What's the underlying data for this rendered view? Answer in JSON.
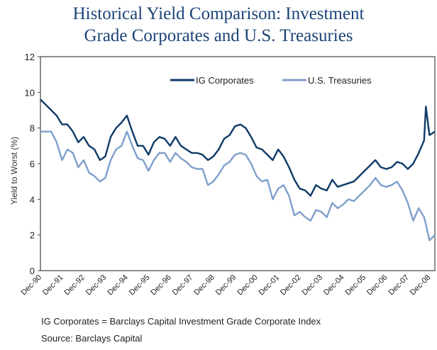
{
  "chart_data": {
    "type": "line",
    "title_lines": [
      "Historical Yield Comparison: Investment",
      "Grade Corporates and U.S. Treasuries"
    ],
    "ylabel": "Yield to Worst (%)",
    "xlabel": "",
    "ylim": [
      0,
      12
    ],
    "yticks": [
      0,
      2,
      4,
      6,
      8,
      10,
      12
    ],
    "xlim": [
      "1990-12",
      "2009-03"
    ],
    "xticks": [
      "Dec-90",
      "Dec-91",
      "Dec-92",
      "Dec-93",
      "Dec-94",
      "Dec-95",
      "Dec-96",
      "Dec-97",
      "Dec-98",
      "Dec-99",
      "Dec-00",
      "Dec-01",
      "Dec-02",
      "Dec-03",
      "Dec-04",
      "Dec-05",
      "Dec-06",
      "Dec-07",
      "Dec-08"
    ],
    "grid": false,
    "legend_position": "top-right",
    "x": [
      "1990-12",
      "1991-03",
      "1991-06",
      "1991-09",
      "1991-12",
      "1992-03",
      "1992-06",
      "1992-09",
      "1992-12",
      "1993-03",
      "1993-06",
      "1993-09",
      "1993-12",
      "1994-03",
      "1994-06",
      "1994-09",
      "1994-12",
      "1995-03",
      "1995-06",
      "1995-09",
      "1995-12",
      "1996-03",
      "1996-06",
      "1996-09",
      "1996-12",
      "1997-03",
      "1997-06",
      "1997-09",
      "1997-12",
      "1998-03",
      "1998-06",
      "1998-09",
      "1998-12",
      "1999-03",
      "1999-06",
      "1999-09",
      "1999-12",
      "2000-03",
      "2000-06",
      "2000-09",
      "2000-12",
      "2001-03",
      "2001-06",
      "2001-09",
      "2001-12",
      "2002-03",
      "2002-06",
      "2002-09",
      "2002-12",
      "2003-03",
      "2003-06",
      "2003-09",
      "2003-12",
      "2004-03",
      "2004-06",
      "2004-09",
      "2004-12",
      "2005-03",
      "2005-06",
      "2005-09",
      "2005-12",
      "2006-03",
      "2006-06",
      "2006-09",
      "2006-12",
      "2007-03",
      "2007-06",
      "2007-09",
      "2007-12",
      "2008-03",
      "2008-06",
      "2008-09",
      "2008-10",
      "2008-12",
      "2009-03"
    ],
    "series": [
      {
        "name": "IG Corporates",
        "color": "#0e3a68",
        "values": [
          9.6,
          9.3,
          9.0,
          8.7,
          8.2,
          8.2,
          7.8,
          7.2,
          7.5,
          7.0,
          6.8,
          6.2,
          6.4,
          7.5,
          8.0,
          8.3,
          8.7,
          7.8,
          7.0,
          7.0,
          6.5,
          7.2,
          7.5,
          7.4,
          7.0,
          7.5,
          7.0,
          6.8,
          6.6,
          6.6,
          6.5,
          6.2,
          6.4,
          6.8,
          7.4,
          7.6,
          8.1,
          8.2,
          8.0,
          7.5,
          6.9,
          6.8,
          6.5,
          6.2,
          6.8,
          6.4,
          5.8,
          5.1,
          4.6,
          4.5,
          4.2,
          4.8,
          4.6,
          4.5,
          5.1,
          4.7,
          4.8,
          4.9,
          5.0,
          5.3,
          5.6,
          5.9,
          6.2,
          5.8,
          5.7,
          5.8,
          6.1,
          6.0,
          5.7,
          6.0,
          6.6,
          7.3,
          9.2,
          7.6,
          7.8
        ]
      },
      {
        "name": "U.S. Treasuries",
        "color": "#7f9fcc",
        "values": [
          7.8,
          7.8,
          7.8,
          7.2,
          6.2,
          6.8,
          6.6,
          5.8,
          6.2,
          5.5,
          5.3,
          5.0,
          5.2,
          6.2,
          6.8,
          7.0,
          7.8,
          7.0,
          6.3,
          6.2,
          5.6,
          6.2,
          6.6,
          6.6,
          6.1,
          6.6,
          6.3,
          6.1,
          5.8,
          5.7,
          5.7,
          4.8,
          5.0,
          5.4,
          5.9,
          6.1,
          6.5,
          6.6,
          6.5,
          6.0,
          5.3,
          5.0,
          5.1,
          4.0,
          4.6,
          4.8,
          4.2,
          3.1,
          3.3,
          3.0,
          2.8,
          3.4,
          3.3,
          3.0,
          3.8,
          3.5,
          3.7,
          4.0,
          3.9,
          4.2,
          4.5,
          4.8,
          5.2,
          4.8,
          4.7,
          4.8,
          5.0,
          4.5,
          3.8,
          2.8,
          3.5,
          3.0,
          2.6,
          1.7,
          2.0
        ]
      }
    ]
  },
  "notes": {
    "definition": "IG Corporates = Barclays Capital Investment Grade Corporate Index",
    "source": "Source: Barclays Capital"
  }
}
